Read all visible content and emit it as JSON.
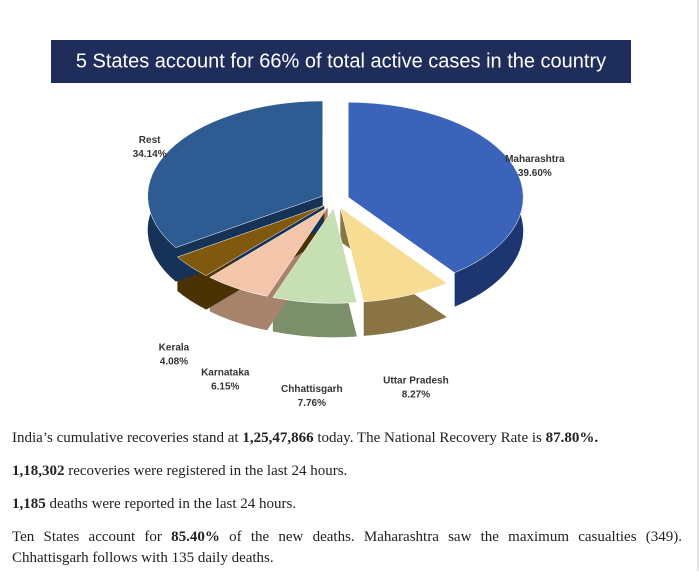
{
  "chart_data": {
    "type": "pie",
    "title": "5 States account for 66% of total active cases in the country",
    "categories": [
      "Maharashtra",
      "Uttar Pradesh",
      "Chhattisgarh",
      "Karnataka",
      "Kerala",
      "Rest"
    ],
    "values": [
      39.6,
      8.27,
      7.76,
      6.15,
      4.08,
      34.14
    ],
    "value_labels": [
      "39.60%",
      "8.27%",
      "7.76%",
      "6.15%",
      "4.08%",
      "34.14%"
    ],
    "colors": [
      "#3b63b9",
      "#f6dd93",
      "#c6e0b4",
      "#f3c6ac",
      "#80590e",
      "#2f5b93"
    ],
    "side_colors": [
      "#1d3570",
      "#8a7444",
      "#7a8f6a",
      "#a8836c",
      "#4a3205",
      "#173257"
    ]
  },
  "paragraphs": [
    [
      {
        "text": "India’s cumulative recoveries stand at ",
        "bold": false
      },
      {
        "text": "1,25,47,866",
        "bold": true
      },
      {
        "text": " today. The National Recovery Rate is ",
        "bold": false
      },
      {
        "text": "87.80%.",
        "bold": true
      }
    ],
    [
      {
        "text": "1,18,302",
        "bold": true
      },
      {
        "text": " recoveries were registered in the last 24 hours.",
        "bold": false
      }
    ],
    [
      {
        "text": "1,185",
        "bold": true
      },
      {
        "text": " deaths were reported in the last 24 hours.",
        "bold": false
      }
    ],
    [
      {
        "text": "Ten States account for ",
        "bold": false
      },
      {
        "text": "85.40%",
        "bold": true
      },
      {
        "text": " of the new deaths. Maharashtra saw the maximum casualties (349). Chhattisgarh follows with 135 daily deaths.",
        "bold": false
      }
    ]
  ]
}
